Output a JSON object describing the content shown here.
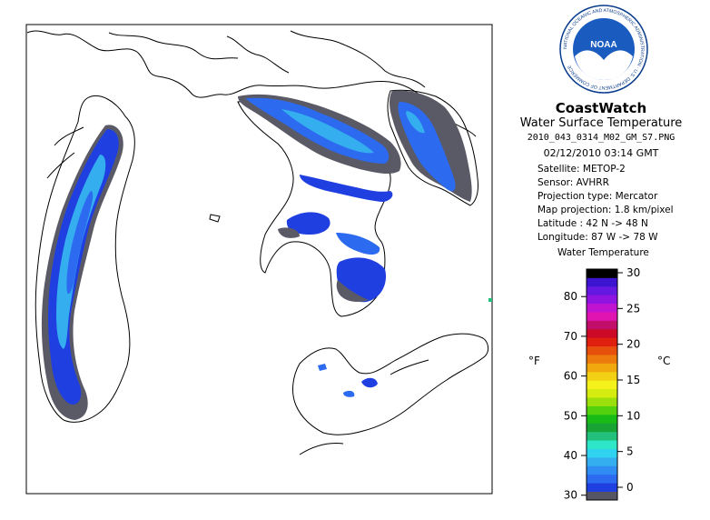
{
  "logo": {
    "center_text": "NOAA",
    "ring_text": "NATIONAL OCEANIC AND ATMOSPHERIC ADMINISTRATION · U.S. DEPARTMENT OF COMMERCE"
  },
  "header": {
    "brand": "CoastWatch",
    "subtitle": "Water Surface Temperature",
    "filename": "2010_043_0314_M02_GM_S7.PNG",
    "datetime": "02/12/2010   03:14 GMT"
  },
  "info": [
    "Satellite: METOP-2",
    "Sensor: AVHRR",
    "Projection type:  Mercator",
    "Map projection: 1.8 km/pixel",
    "Latitude : 42 N  -> 48 N",
    "Longitude: 87 W  -> 78 W"
  ],
  "legend": {
    "title": "Water Temperature",
    "f_unit": "°F",
    "c_unit": "°C",
    "f_ticks": [
      "30",
      "40",
      "50",
      "60",
      "70",
      "80"
    ],
    "c_ticks": [
      "0",
      "5",
      "10",
      "15",
      "20",
      "25",
      "30"
    ],
    "f_values": [
      30,
      40,
      50,
      60,
      70,
      80
    ],
    "c_values": [
      0,
      5,
      10,
      15,
      20,
      25,
      30
    ],
    "colors": [
      "#555563",
      "#1f3fe0",
      "#2c6af0",
      "#2e8cf2",
      "#35aef0",
      "#2fd3f0",
      "#2ee6c8",
      "#22c07a",
      "#18a334",
      "#19bc17",
      "#54d10e",
      "#9be00c",
      "#d4ec10",
      "#f4f21a",
      "#f2d014",
      "#f0a80e",
      "#ec7a0c",
      "#e6500c",
      "#e0200e",
      "#cc0a28",
      "#c00e6a",
      "#e014b0",
      "#c014d0",
      "#9014e0",
      "#6418e0",
      "#3c14d0",
      "#000000"
    ]
  },
  "map": {
    "coastline_color": "#000000",
    "water_colors": {
      "ice_or_no_data": "#5a5a66",
      "coldest": "#1f3fe0",
      "cold": "#2c6af0",
      "cool": "#35aef0"
    }
  }
}
